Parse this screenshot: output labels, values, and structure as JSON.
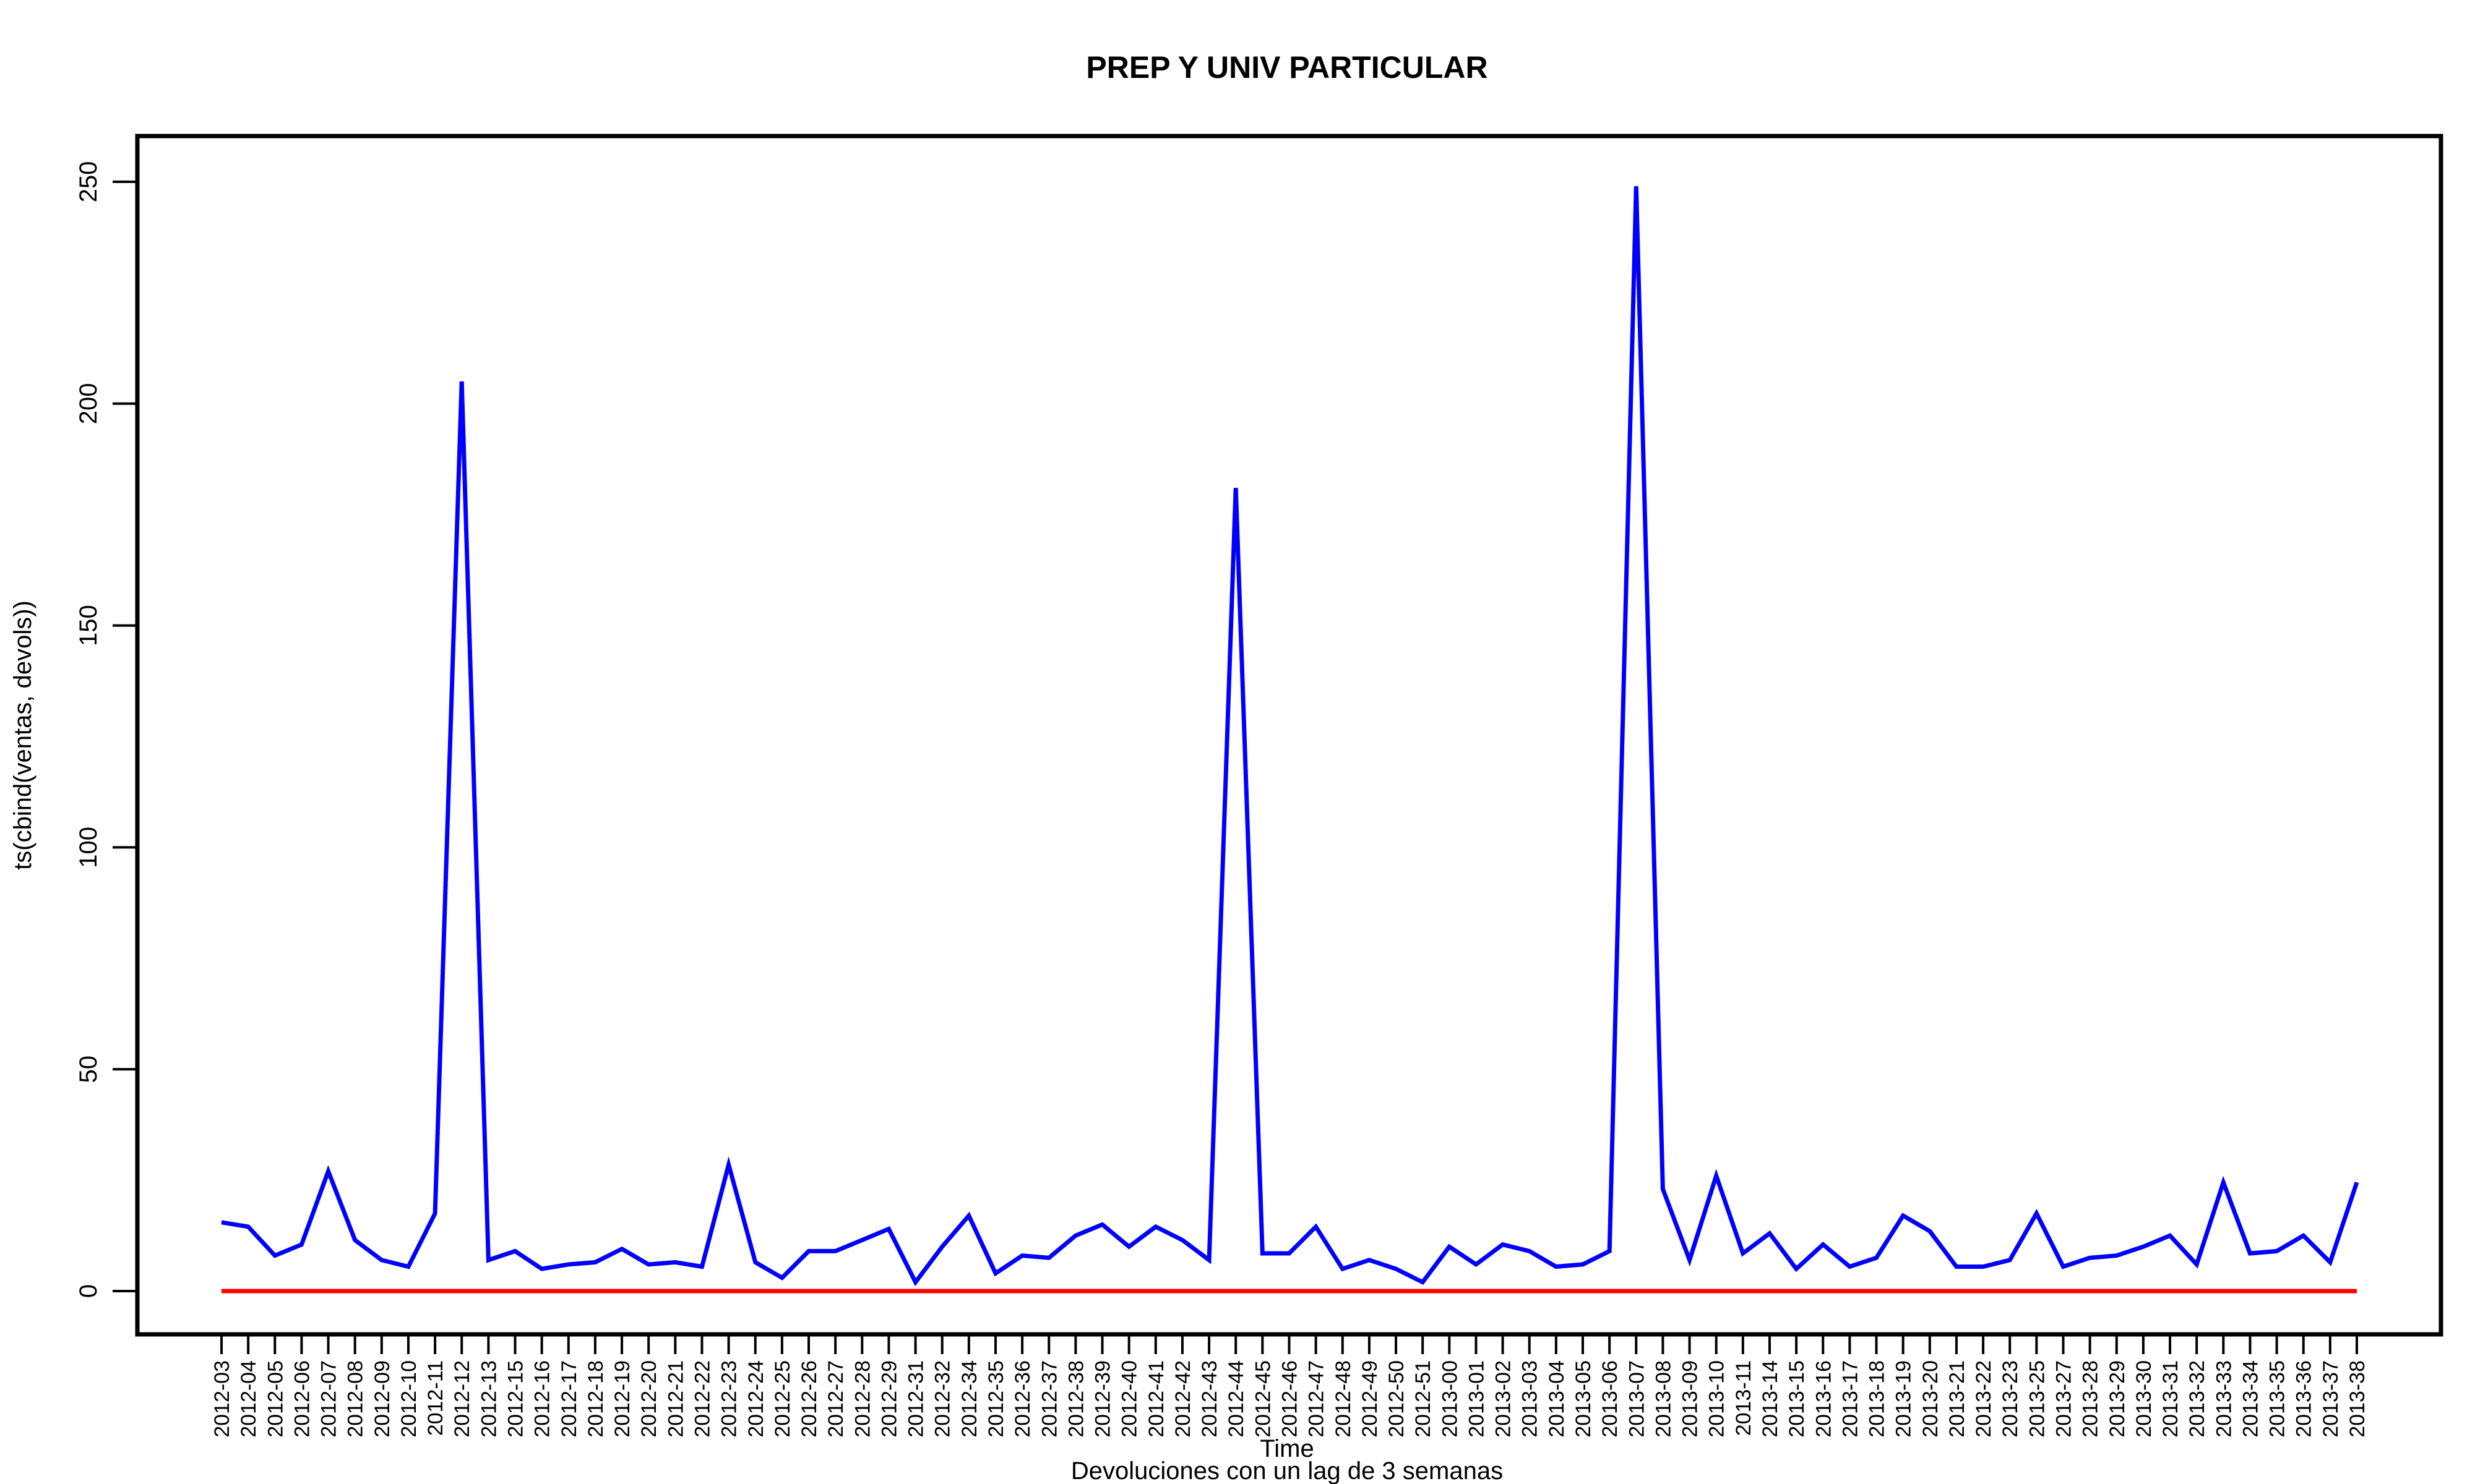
{
  "chart_data": {
    "type": "line",
    "title": "PREP Y UNIV PARTICULAR",
    "xlabel": "Time",
    "subtitle": "Devoluciones con un lag de 3 semanas",
    "ylabel": "ts(cbind(ventas, devols))",
    "ylim": [
      0,
      250
    ],
    "yticks": [
      0,
      50,
      100,
      150,
      200,
      250
    ],
    "grid": false,
    "categories": [
      "2012-03",
      "2012-04",
      "2012-05",
      "2012-06",
      "2012-07",
      "2012-08",
      "2012-09",
      "2012-10",
      "2012-11",
      "2012-12",
      "2012-13",
      "2012-15",
      "2012-16",
      "2012-17",
      "2012-18",
      "2012-19",
      "2012-20",
      "2012-21",
      "2012-22",
      "2012-23",
      "2012-24",
      "2012-25",
      "2012-26",
      "2012-27",
      "2012-28",
      "2012-29",
      "2012-31",
      "2012-32",
      "2012-34",
      "2012-35",
      "2012-36",
      "2012-37",
      "2012-38",
      "2012-39",
      "2012-40",
      "2012-41",
      "2012-42",
      "2012-43",
      "2012-44",
      "2012-45",
      "2012-46",
      "2012-47",
      "2012-48",
      "2012-49",
      "2012-50",
      "2012-51",
      "2013-00",
      "2013-01",
      "2013-02",
      "2013-03",
      "2013-04",
      "2013-05",
      "2013-06",
      "2013-07",
      "2013-08",
      "2013-09",
      "2013-10",
      "2013-11",
      "2013-14",
      "2013-15",
      "2013-16",
      "2013-17",
      "2013-18",
      "2013-19",
      "2013-20",
      "2013-21",
      "2013-22",
      "2013-23",
      "2013-25",
      "2013-27",
      "2013-28",
      "2013-29",
      "2013-30",
      "2013-31",
      "2013-32",
      "2013-33",
      "2013-34",
      "2013-35",
      "2013-36",
      "2013-37",
      "2013-38"
    ],
    "series": [
      {
        "color": "#0000ff",
        "values": [
          15.5,
          14.5,
          8,
          10.5,
          27,
          11.5,
          7,
          5.5,
          17.5,
          205,
          7,
          9,
          5,
          6,
          6.5,
          9.5,
          6,
          6.5,
          5.5,
          28.5,
          6.5,
          3,
          9,
          9,
          11.5,
          14,
          2,
          10,
          17,
          4,
          8,
          7.5,
          12.5,
          15,
          10,
          14.5,
          11.5,
          7,
          181,
          8.5,
          8.5,
          14.5,
          5,
          7,
          5,
          2,
          10,
          6,
          10.5,
          9,
          5.5,
          6,
          9,
          249,
          23,
          7,
          26,
          8.5,
          13,
          5,
          10.5,
          5.5,
          7.5,
          17,
          13.5,
          5.5,
          5.5,
          7,
          17.5,
          5.5,
          7.5,
          8,
          10,
          12.5,
          6,
          24.5,
          8.5,
          9,
          12.5,
          6.5,
          24.5
        ]
      },
      {
        "color": "#ff0000",
        "values": [
          0,
          0,
          0,
          0,
          0,
          0,
          0,
          0,
          0,
          0,
          0,
          0,
          0,
          0,
          0,
          0,
          0,
          0,
          0,
          0,
          0,
          0,
          0,
          0,
          0,
          0,
          0,
          0,
          0,
          0,
          0,
          0,
          0,
          0,
          0,
          0,
          0,
          0,
          0,
          0,
          0,
          0,
          0,
          0,
          0,
          0,
          0,
          0,
          0,
          0,
          0,
          0,
          0,
          0,
          0,
          0,
          0,
          0,
          0,
          0,
          0,
          0,
          0,
          0,
          0,
          0,
          0,
          0,
          0,
          0,
          0,
          0,
          0,
          0,
          0,
          0,
          0,
          0,
          0,
          0,
          0
        ]
      }
    ]
  }
}
